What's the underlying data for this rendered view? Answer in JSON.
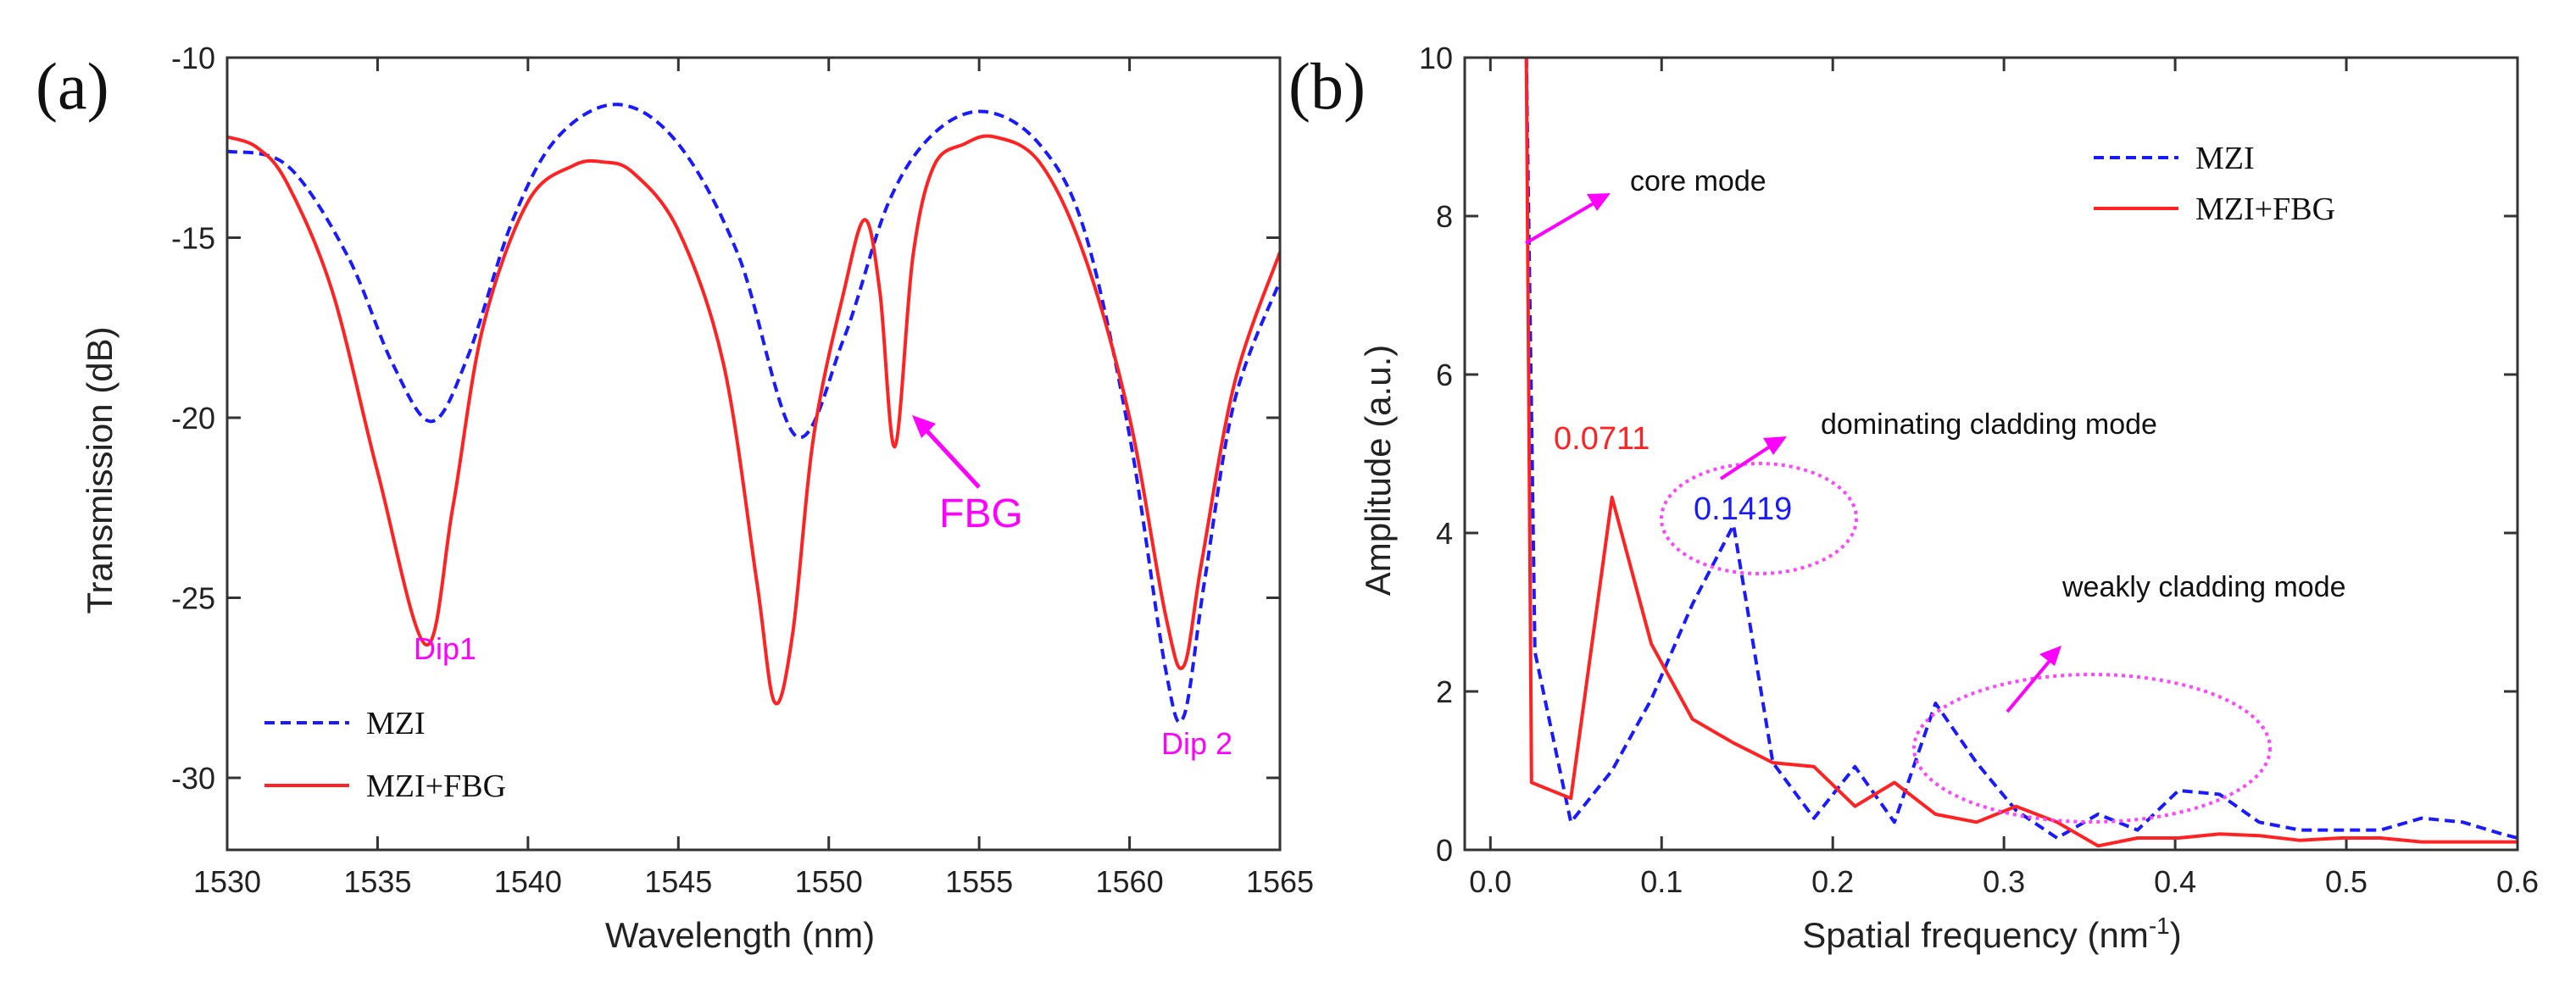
{
  "chart_data": [
    {
      "type": "line",
      "panel_label": "(a)",
      "xlabel": "Wavelength (nm)",
      "ylabel": "Transmission (dB)",
      "xlim": [
        1530,
        1565
      ],
      "ylim": [
        -32,
        -10
      ],
      "x_ticks": [
        1530,
        1535,
        1540,
        1545,
        1550,
        1555,
        1560,
        1565
      ],
      "x_tick_labels": [
        "1530",
        "1535",
        "1540",
        "1545",
        "1550",
        "1555",
        "1560",
        "1565"
      ],
      "y_ticks": [
        -30,
        -25,
        -20,
        -15,
        -10
      ],
      "y_tick_labels": [
        "-30",
        "-25",
        "-20",
        "-15",
        "-10"
      ],
      "legend_position": "bottom-left",
      "series": [
        {
          "name": "MZI",
          "style": "dashed",
          "color": "#1a1aff",
          "x": [
            1530,
            1532,
            1534,
            1535.5,
            1536.8,
            1538,
            1539.5,
            1541,
            1543,
            1545,
            1547,
            1548.9,
            1550.5,
            1552,
            1553.5,
            1555.2,
            1557,
            1558.5,
            1560,
            1561.2,
            1561.8,
            1562.5,
            1563.5,
            1565
          ],
          "y": [
            -12.6,
            -13.0,
            -15.5,
            -18.5,
            -20.1,
            -18.3,
            -14.5,
            -12.2,
            -11.3,
            -12.4,
            -15.5,
            -20.5,
            -17.8,
            -14.0,
            -12.1,
            -11.5,
            -12.4,
            -14.8,
            -20.5,
            -27.0,
            -28.3,
            -24.5,
            -19.5,
            -16.2
          ]
        },
        {
          "name": "MZI+FBG",
          "style": "solid",
          "color": "#ff2222",
          "x": [
            1530,
            1531,
            1532,
            1533.5,
            1535,
            1536.6,
            1537.5,
            1538.5,
            1540,
            1541.5,
            1542.5,
            1543.5,
            1545,
            1546.5,
            1547.6,
            1548.2,
            1548.8,
            1549.5,
            1550.5,
            1551.2,
            1551.7,
            1552.2,
            1552.8,
            1553.5,
            1554.5,
            1555.5,
            1557,
            1558.5,
            1560,
            1561.2,
            1561.8,
            1562.4,
            1563.5,
            1565
          ],
          "y": [
            -12.2,
            -12.5,
            -13.5,
            -16.5,
            -21.5,
            -26.3,
            -22.5,
            -17.5,
            -14.0,
            -13.0,
            -12.9,
            -13.2,
            -14.8,
            -18.5,
            -24.5,
            -27.9,
            -26.0,
            -20.5,
            -16.5,
            -14.5,
            -16.5,
            -20.8,
            -15.5,
            -13.0,
            -12.4,
            -12.2,
            -12.9,
            -15.5,
            -20.0,
            -25.5,
            -26.9,
            -24.0,
            -19.0,
            -15.4
          ]
        }
      ],
      "annotations": [
        "FBG",
        "Dip1",
        "Dip 2"
      ]
    },
    {
      "type": "line",
      "panel_label": "(b)",
      "xlabel": "Spatial frequency (nm",
      "xlabel_superscript": "-1",
      "xlabel_suffix": ")",
      "ylabel": "Amplitude (a.u.)",
      "xlim": [
        -0.015,
        0.6
      ],
      "ylim": [
        0,
        10
      ],
      "x_ticks": [
        0.0,
        0.1,
        0.2,
        0.3,
        0.4,
        0.5,
        0.6
      ],
      "x_tick_labels": [
        "0.0",
        "0.1",
        "0.2",
        "0.3",
        "0.4",
        "0.5",
        "0.6"
      ],
      "y_ticks": [
        0,
        2,
        4,
        6,
        8,
        10
      ],
      "y_tick_labels": [
        "0",
        "2",
        "4",
        "6",
        "8",
        "10"
      ],
      "legend_position": "top-right",
      "series": [
        {
          "name": "MZI",
          "style": "dashed",
          "color": "#1a1aff",
          "x": [
            0.021,
            0.026,
            0.047,
            0.071,
            0.094,
            0.118,
            0.142,
            0.165,
            0.189,
            0.213,
            0.236,
            0.26,
            0.284,
            0.307,
            0.331,
            0.355,
            0.378,
            0.402,
            0.426,
            0.449,
            0.473,
            0.497,
            0.52,
            0.544,
            0.568,
            0.591,
            0.6
          ],
          "y": [
            10.0,
            2.5,
            0.35,
            1.0,
            1.9,
            3.1,
            4.1,
            1.1,
            0.4,
            1.05,
            0.35,
            1.85,
            1.1,
            0.5,
            0.15,
            0.45,
            0.25,
            0.75,
            0.7,
            0.35,
            0.25,
            0.25,
            0.25,
            0.4,
            0.35,
            0.2,
            0.15
          ]
        },
        {
          "name": "MZI+FBG",
          "style": "solid",
          "color": "#ff2222",
          "x": [
            0.021,
            0.024,
            0.047,
            0.071,
            0.094,
            0.118,
            0.142,
            0.165,
            0.189,
            0.213,
            0.236,
            0.26,
            0.284,
            0.307,
            0.331,
            0.355,
            0.378,
            0.402,
            0.426,
            0.449,
            0.473,
            0.497,
            0.52,
            0.544,
            0.568,
            0.591,
            0.6
          ],
          "y": [
            10.0,
            0.85,
            0.65,
            4.45,
            2.6,
            1.65,
            1.35,
            1.1,
            1.05,
            0.55,
            0.85,
            0.45,
            0.35,
            0.55,
            0.35,
            0.05,
            0.15,
            0.15,
            0.2,
            0.18,
            0.12,
            0.15,
            0.15,
            0.1,
            0.1,
            0.1,
            0.1
          ]
        }
      ],
      "annotations": [
        "core mode",
        "dominating cladding mode",
        "weakly cladding mode",
        "0.0711",
        "0.1419"
      ]
    }
  ],
  "annotation_colors": {
    "magenta": "#ff00ff",
    "red": "#ff2222",
    "blue": "#1a1aff"
  }
}
